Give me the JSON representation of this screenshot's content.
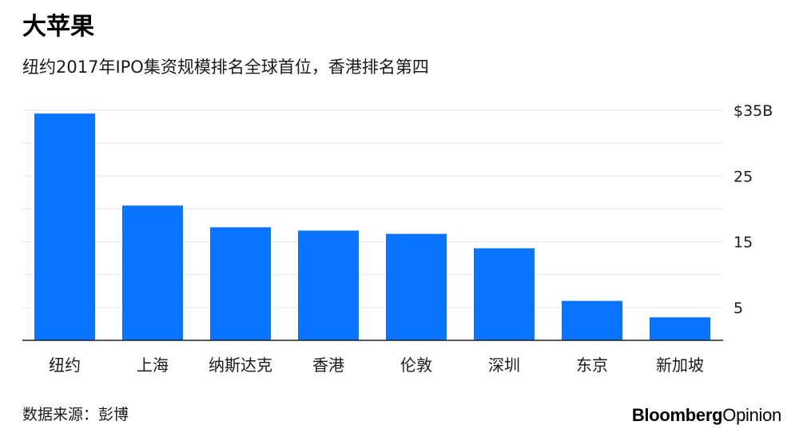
{
  "header": {
    "title": "大苹果",
    "subtitle": "纽约2017年IPO集资规模排名全球首位，香港排名第四"
  },
  "footer": {
    "source": "数据来源：彭博",
    "brand_bold": "Bloomberg",
    "brand_regular": "Opinion"
  },
  "colors": {
    "bar": "#0a73ff",
    "grid": "#e6e6e6",
    "axis": "#222222",
    "text": "#1a1a1a"
  },
  "chart_data": {
    "type": "bar",
    "title": "大苹果",
    "subtitle": "纽约2017年IPO集资规模排名全球首位，香港排名第四",
    "categories": [
      "纽约",
      "上海",
      "纳斯达克",
      "香港",
      "伦敦",
      "深圳",
      "东京",
      "新加坡"
    ],
    "values": [
      34.5,
      20.5,
      17.2,
      16.7,
      16.2,
      14.0,
      6.0,
      3.5
    ],
    "unit": "B",
    "ylim": [
      0,
      35
    ],
    "yticks": [
      {
        "value": 35,
        "label": "$35B"
      },
      {
        "value": 25,
        "label": "25"
      },
      {
        "value": 15,
        "label": "15"
      },
      {
        "value": 5,
        "label": "5"
      }
    ],
    "gridlines": [
      5,
      10,
      15,
      20,
      25,
      30,
      35
    ],
    "y_axis_position": "right",
    "grid": true,
    "legend": "none"
  }
}
